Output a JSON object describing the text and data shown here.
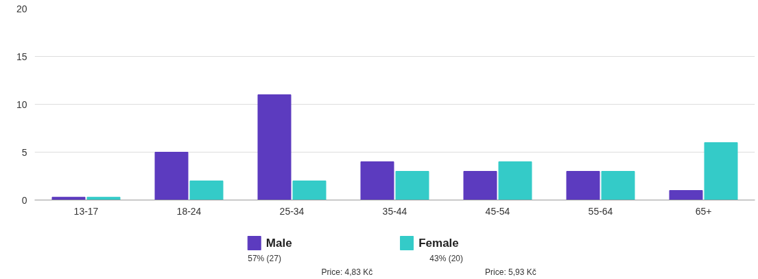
{
  "chart_data": {
    "type": "bar",
    "categories": [
      "13-17",
      "18-24",
      "25-34",
      "35-44",
      "45-54",
      "55-64",
      "65+"
    ],
    "series": [
      {
        "name": "Male",
        "color": "#5c3bbf",
        "values": [
          0.3,
          5,
          11,
          4,
          3,
          3,
          1
        ]
      },
      {
        "name": "Female",
        "color": "#34cbc8",
        "values": [
          0.3,
          2,
          2,
          3,
          4,
          3,
          6
        ]
      }
    ],
    "ylim": [
      0,
      20
    ],
    "yticks": [
      0,
      5,
      10,
      15,
      20
    ],
    "grid": "y",
    "legend": "bottom",
    "annotations": [
      "57% (27)",
      "43% (20)",
      "Price: 4,83 Kč",
      "Price: 5,93 Kč"
    ]
  }
}
